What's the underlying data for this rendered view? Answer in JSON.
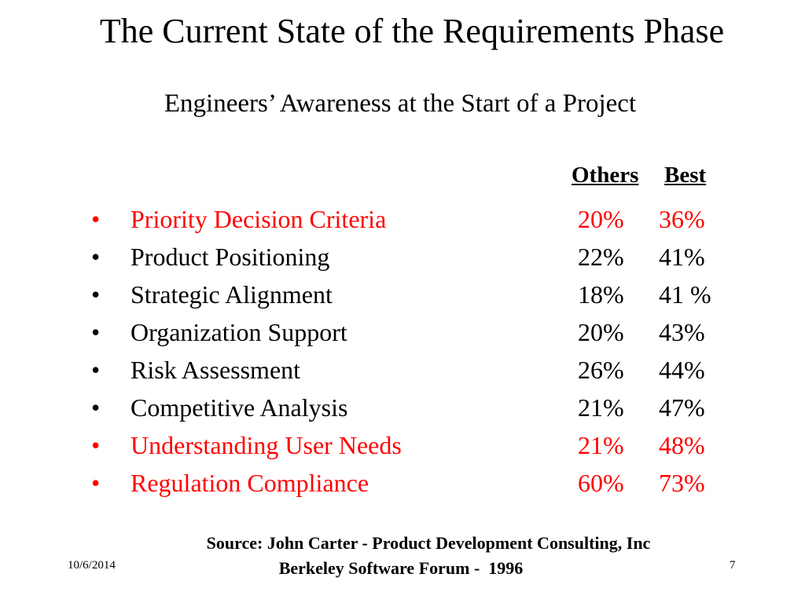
{
  "slide": {
    "title": "The Current State of the Requirements Phase",
    "subtitle": "Engineers’ Awareness at the Start of a Project",
    "columns": {
      "others": "Others",
      "best": "Best"
    },
    "bullet": "•",
    "items": [
      {
        "label": "Priority Decision Criteria",
        "others": "20%",
        "best": "36%"
      },
      {
        "label": "Product Positioning",
        "others": "22%",
        "best": "41%"
      },
      {
        "label": "Strategic Alignment",
        "others": "18%",
        "best": "41 %"
      },
      {
        "label": "Organization Support",
        "others": "20%",
        "best": "43%"
      },
      {
        "label": "Risk Assessment",
        "others": "26%",
        "best": "44%"
      },
      {
        "label": "Competitive Analysis",
        "others": "21%",
        "best": "47%"
      },
      {
        "label": "Understanding User Needs",
        "others": "21%",
        "best": "48%"
      },
      {
        "label": "Regulation Compliance",
        "others": "60%",
        "best": "73%"
      }
    ],
    "source_line1": "Source: John Carter - Product Development Consulting, Inc",
    "source_line2": "Berkeley Software Forum -  1996",
    "footer": {
      "date": "10/6/2014",
      "page": "7"
    },
    "colors": {
      "text": "#000000",
      "highlight": "#ff0000",
      "background": "#ffffff"
    }
  }
}
